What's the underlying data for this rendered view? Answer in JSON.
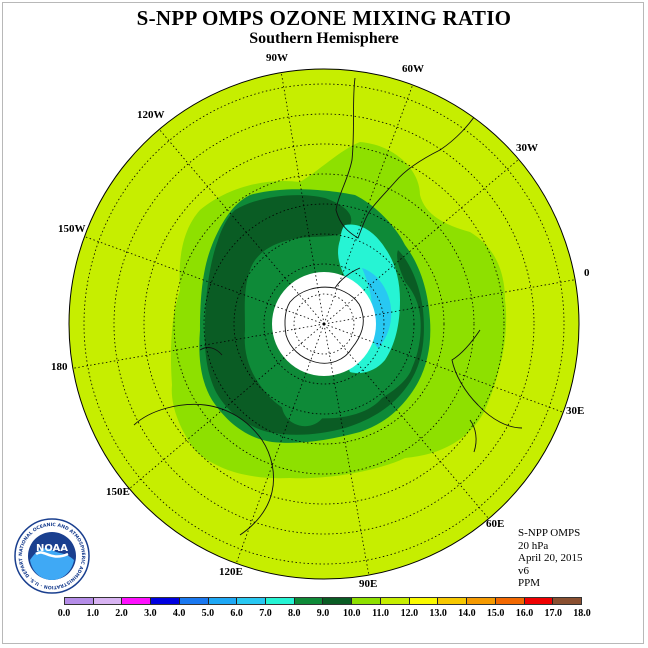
{
  "title": "S-NPP OMPS OZONE MIXING RATIO",
  "subtitle": "Southern Hemisphere",
  "longitude_labels": [
    "90W",
    "60W",
    "30W",
    "0",
    "30E",
    "60E",
    "90E",
    "120E",
    "150E",
    "180",
    "150W",
    "120W"
  ],
  "info": {
    "instrument": "S-NPP OMPS",
    "level": "20 hPa",
    "date": "April 20, 2015",
    "version": "v6",
    "units": "PPM"
  },
  "logo": {
    "text": "NOAA",
    "ring_text": "NATIONAL OCEANIC AND ATMOSPHERIC ADMINISTRATION · U.S. DEPARTMENT OF COMMERCE"
  },
  "colorbar": {
    "ticks": [
      "0.0",
      "1.0",
      "2.0",
      "3.0",
      "4.0",
      "5.0",
      "6.0",
      "7.0",
      "8.0",
      "9.0",
      "10.0",
      "11.0",
      "12.0",
      "13.0",
      "14.0",
      "15.0",
      "16.0",
      "17.0",
      "18.0"
    ],
    "colors": [
      "#b58de8",
      "#d8b3f2",
      "#ff10ff",
      "#0000e0",
      "#1a78f0",
      "#1ea8f5",
      "#28c8f2",
      "#26f4d4",
      "#0e8a38",
      "#0a5c24",
      "#8ee000",
      "#c6ee00",
      "#fafa00",
      "#f7c800",
      "#f59a00",
      "#f26800",
      "#ef0000",
      "#8a4f30"
    ]
  },
  "map": {
    "background_color": "#c6ee00",
    "contour_fills": [
      "#8ee000",
      "#0e8a38",
      "#0a5c24",
      "#26f4d4",
      "#28c8f2",
      "#ffffff"
    ]
  }
}
